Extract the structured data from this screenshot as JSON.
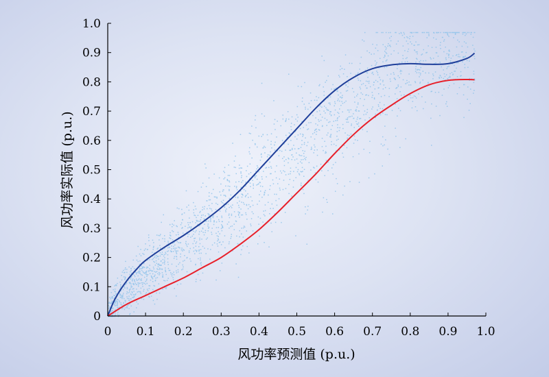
{
  "chart_data": {
    "type": "scatter",
    "xlabel": "风功率预测值 (p.u.)",
    "ylabel": "风功率实际值 (p.u.)",
    "xlim": [
      0,
      1.0
    ],
    "ylim": [
      0,
      1.0
    ],
    "x_ticks": [
      "0",
      "0.1",
      "0.2",
      "0.3",
      "0.4",
      "0.5",
      "0.6",
      "0.7",
      "0.8",
      "0.9",
      "1.0"
    ],
    "y_ticks": [
      "0",
      "0.1",
      "0.2",
      "0.3",
      "0.4",
      "0.5",
      "0.6",
      "0.7",
      "0.8",
      "0.9",
      "1.0"
    ],
    "grid": false,
    "legend": "none",
    "scatter_color": "#8fc3ea",
    "scatter_range_x": [
      0,
      0.97
    ],
    "scatter_range_y": [
      0,
      0.97
    ],
    "series": [
      {
        "color": "#1f3f9a",
        "x": [
          0,
          0.02,
          0.05,
          0.08,
          0.1,
          0.15,
          0.2,
          0.25,
          0.3,
          0.35,
          0.4,
          0.45,
          0.5,
          0.55,
          0.6,
          0.65,
          0.7,
          0.75,
          0.8,
          0.85,
          0.9,
          0.95,
          0.97
        ],
        "y": [
          0,
          0.06,
          0.12,
          0.165,
          0.19,
          0.235,
          0.275,
          0.32,
          0.37,
          0.43,
          0.5,
          0.57,
          0.64,
          0.71,
          0.77,
          0.815,
          0.845,
          0.858,
          0.862,
          0.86,
          0.862,
          0.88,
          0.898
        ]
      },
      {
        "color": "#e8202a",
        "x": [
          0,
          0.05,
          0.1,
          0.15,
          0.2,
          0.25,
          0.3,
          0.35,
          0.4,
          0.45,
          0.5,
          0.55,
          0.6,
          0.65,
          0.7,
          0.75,
          0.8,
          0.85,
          0.9,
          0.95,
          0.97
        ],
        "y": [
          0,
          0.04,
          0.07,
          0.1,
          0.13,
          0.165,
          0.2,
          0.245,
          0.295,
          0.355,
          0.42,
          0.485,
          0.555,
          0.62,
          0.675,
          0.72,
          0.76,
          0.79,
          0.805,
          0.808,
          0.807
        ]
      }
    ]
  }
}
